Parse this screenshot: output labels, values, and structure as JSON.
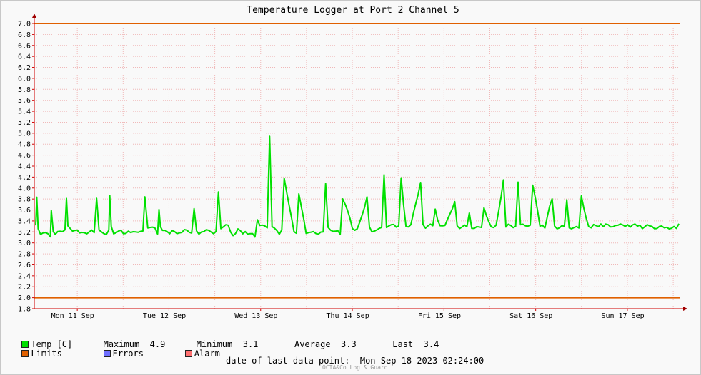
{
  "chart_data": {
    "type": "line",
    "title": "Temperature Logger at Port 2 Channel 5",
    "y_ticks": [
      "7.0",
      "6.8",
      "6.6",
      "6.4",
      "6.2",
      "6.0",
      "5.8",
      "5.6",
      "5.4",
      "5.2",
      "5.0",
      "4.8",
      "4.6",
      "4.4",
      "4.2",
      "4.0",
      "3.8",
      "3.6",
      "3.4",
      "3.2",
      "3.0",
      "2.8",
      "2.6",
      "2.4",
      "2.2",
      "2.0",
      "1.8"
    ],
    "ylim": [
      1.8,
      7.0
    ],
    "x_labels": [
      "Mon 11 Sep",
      "Tue 12 Sep",
      "Wed 13 Sep",
      "Thu 14 Sep",
      "Fri 15 Sep",
      "Sat 16 Sep",
      "Sun 17 Sep"
    ],
    "limits": {
      "upper": 7.0,
      "lower": 2.0
    },
    "series": [
      {
        "name": "Temp [C]",
        "color": "#00e000",
        "x": [
          0.0,
          0.02,
          0.05,
          0.1,
          0.3,
          0.32,
          0.36,
          0.4,
          0.45,
          0.6,
          0.63,
          0.66,
          0.8,
          0.9,
          0.95,
          1.2,
          1.25,
          1.3,
          1.5,
          1.52,
          1.55,
          1.6,
          1.8,
          1.9,
          2.2,
          2.24,
          2.3,
          2.5,
          2.53,
          2.56,
          2.6,
          2.75,
          2.85,
          2.95,
          3.05,
          3.2,
          3.25,
          3.3,
          3.4,
          3.5,
          3.7,
          3.75,
          3.8,
          3.95,
          4.0,
          4.1,
          4.15,
          4.2,
          4.5,
          4.55,
          4.6,
          4.75,
          4.8,
          4.85,
          5.0,
          5.05,
          5.1,
          5.3,
          5.35,
          5.4,
          5.55,
          5.6,
          5.65,
          5.9,
          5.95,
          6.0,
          6.2,
          6.25,
          6.3,
          6.5,
          6.55,
          6.6,
          6.8,
          6.85,
          6.9,
          7.1,
          7.15,
          7.2,
          7.4,
          7.45,
          7.5,
          7.6,
          7.65,
          7.7,
          7.9,
          7.95,
          8.0,
          8.15,
          8.2,
          8.3,
          8.35,
          8.4,
          8.6,
          8.65,
          8.7,
          8.85,
          8.9,
          8.95,
          9.1,
          9.15,
          9.2,
          9.35,
          9.4,
          9.45,
          9.6,
          9.65,
          9.7,
          9.85,
          9.9,
          9.95,
          10.1,
          10.15,
          10.2,
          10.35,
          10.4,
          10.45,
          10.6,
          10.65,
          10.7,
          10.85,
          10.9,
          10.95,
          11.1,
          11.15,
          11.2,
          11.35,
          11.4,
          11.45,
          11.6,
          11.65,
          11.7,
          11.85,
          11.9,
          11.95,
          12.1,
          12.15,
          12.2,
          12.35,
          12.4,
          12.45,
          12.6,
          12.65,
          12.7,
          12.85,
          12.9,
          12.95,
          13.1,
          13.15,
          13.2
        ],
        "values": [
          3.3,
          3.8,
          3.3,
          3.15,
          3.15,
          3.6,
          3.2,
          3.15,
          3.2,
          3.2,
          3.85,
          3.3,
          3.2,
          3.2,
          3.2,
          3.2,
          3.8,
          3.2,
          3.2,
          3.85,
          3.3,
          3.2,
          3.2,
          3.2,
          3.2,
          3.85,
          3.3,
          3.2,
          3.6,
          3.3,
          3.2,
          3.2,
          3.2,
          3.2,
          3.2,
          3.2,
          3.6,
          3.2,
          3.2,
          3.2,
          3.2,
          3.9,
          3.3,
          3.3,
          3.2,
          3.15,
          3.25,
          3.2,
          3.15,
          3.4,
          3.3,
          3.3,
          4.9,
          3.3,
          3.15,
          3.2,
          4.2,
          3.2,
          3.2,
          3.9,
          3.2,
          3.2,
          3.2,
          3.2,
          4.05,
          3.3,
          3.2,
          3.2,
          3.8,
          3.3,
          3.2,
          3.25,
          3.8,
          3.3,
          3.2,
          3.3,
          4.25,
          3.3,
          3.3,
          3.3,
          4.15,
          3.3,
          3.3,
          3.3,
          4.1,
          3.3,
          3.3,
          3.3,
          3.6,
          3.3,
          3.3,
          3.3,
          3.75,
          3.3,
          3.3,
          3.3,
          3.55,
          3.3,
          3.3,
          3.3,
          3.65,
          3.3,
          3.3,
          3.3,
          4.15,
          3.3,
          3.3,
          3.3,
          4.1,
          3.3,
          3.3,
          3.3,
          4.05,
          3.3,
          3.3,
          3.3,
          3.8,
          3.3,
          3.3,
          3.3,
          3.8,
          3.3,
          3.3,
          3.3,
          3.85,
          3.3,
          3.3,
          3.3,
          3.35,
          3.3,
          3.3,
          3.3,
          3.3,
          3.3,
          3.3,
          3.3,
          3.3,
          3.3,
          3.3,
          3.3,
          3.3,
          3.3,
          3.3,
          3.3,
          3.3,
          3.3,
          3.3,
          3.3,
          3.35
        ]
      }
    ],
    "legend_placement": "bottom-left",
    "grid": true
  },
  "legend": {
    "temp_label": "Temp [C]",
    "maximum_label": "Maximum",
    "maximum_value": "4.9",
    "minimum_label": "Minimum",
    "minimum_value": "3.1",
    "average_label": "Average",
    "average_value": "3.3",
    "last_label": "Last",
    "last_value": "3.4",
    "limits_label": "Limits",
    "errors_label": "Errors",
    "alarm_label": "Alarm"
  },
  "colors": {
    "temp": "#00e000",
    "limits": "#e06000",
    "errors": "#7070ff",
    "alarm": "#ff7070"
  },
  "footer": {
    "last_point_label": "date of last data point:",
    "last_point_value": "Mon Sep 18 2023 02:24:00",
    "credit": "OCTA&Co Log & Guard"
  }
}
